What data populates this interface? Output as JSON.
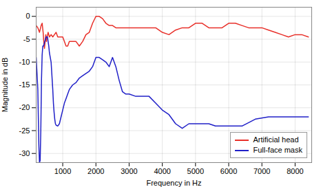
{
  "chart_data": {
    "type": "line",
    "title": "",
    "xlabel": "Frequency in Hz",
    "ylabel": "Magnitude in dB",
    "xlim": [
      200,
      8500
    ],
    "ylim": [
      -32,
      2
    ],
    "xticks": [
      1000,
      2000,
      3000,
      4000,
      5000,
      6000,
      7000,
      8000
    ],
    "yticks": [
      0,
      -5,
      -10,
      -15,
      -20,
      -25,
      -30
    ],
    "grid": true,
    "legend": "lower right",
    "series": [
      {
        "name": "Artificial head",
        "color": "#e8302a",
        "x": [
          200,
          250,
          300,
          350,
          380,
          410,
          430,
          450,
          470,
          490,
          510,
          530,
          560,
          600,
          650,
          700,
          750,
          800,
          850,
          900,
          950,
          1000,
          1050,
          1100,
          1150,
          1200,
          1300,
          1400,
          1500,
          1600,
          1700,
          1800,
          1900,
          2000,
          2100,
          2200,
          2300,
          2400,
          2500,
          2600,
          2700,
          2800,
          2900,
          3000,
          3200,
          3400,
          3600,
          3800,
          4000,
          4200,
          4400,
          4600,
          4800,
          5000,
          5200,
          5400,
          5600,
          5800,
          6000,
          6200,
          6400,
          6600,
          6800,
          7000,
          7200,
          7400,
          7600,
          7800,
          8000,
          8200,
          8400
        ],
        "values": [
          -2.0,
          -2.5,
          -3.5,
          -2.0,
          -1.5,
          -3.5,
          -5.5,
          -7.0,
          -5.5,
          -4.0,
          -5.5,
          -4.5,
          -3.5,
          -4.5,
          -4.0,
          -4.5,
          -4.0,
          -3.5,
          -4.5,
          -4.5,
          -4.5,
          -4.5,
          -5.5,
          -6.5,
          -6.5,
          -5.5,
          -5.5,
          -5.5,
          -6.5,
          -5.5,
          -4.0,
          -3.5,
          -1.5,
          0.0,
          0.0,
          -0.5,
          -1.5,
          -2.0,
          -2.0,
          -2.5,
          -2.5,
          -2.5,
          -2.5,
          -2.5,
          -2.5,
          -2.5,
          -2.5,
          -2.5,
          -3.5,
          -4.0,
          -3.0,
          -2.5,
          -2.5,
          -1.5,
          -1.5,
          -2.5,
          -2.5,
          -2.5,
          -1.5,
          -1.5,
          -2.0,
          -2.5,
          -2.5,
          -2.5,
          -3.0,
          -3.5,
          -4.0,
          -4.5,
          -4.0,
          -4.0,
          -4.5
        ]
      },
      {
        "name": "Full-face mask",
        "color": "#2020c8",
        "x": [
          200,
          250,
          280,
          300,
          320,
          340,
          360,
          380,
          400,
          420,
          440,
          460,
          480,
          500,
          520,
          540,
          560,
          580,
          600,
          650,
          700,
          720,
          740,
          760,
          780,
          800,
          850,
          900,
          950,
          1000,
          1050,
          1100,
          1150,
          1200,
          1300,
          1400,
          1500,
          1600,
          1700,
          1800,
          1900,
          2000,
          2100,
          2200,
          2300,
          2400,
          2500,
          2600,
          2700,
          2800,
          2900,
          3000,
          3200,
          3400,
          3600,
          3800,
          4000,
          4200,
          4400,
          4600,
          4800,
          5000,
          5200,
          5400,
          5600,
          5800,
          6000,
          6200,
          6400,
          6800,
          7200,
          8000,
          8400
        ],
        "values": [
          -9.0,
          -16.0,
          -28.0,
          -32.0,
          -31.5,
          -25.0,
          -14.0,
          -8.5,
          -6.5,
          -6.5,
          -6.0,
          -5.5,
          -5.0,
          -4.5,
          -4.5,
          -4.5,
          -5.5,
          -6.5,
          -8.0,
          -10.0,
          -16.0,
          -19.0,
          -21.0,
          -22.5,
          -23.5,
          -23.8,
          -24.0,
          -23.5,
          -22.0,
          -20.5,
          -19.0,
          -18.0,
          -17.0,
          -16.0,
          -15.0,
          -14.5,
          -13.5,
          -13.0,
          -12.5,
          -12.0,
          -11.0,
          -9.0,
          -9.0,
          -9.5,
          -10.0,
          -11.0,
          -9.0,
          -11.0,
          -14.0,
          -16.5,
          -17.0,
          -17.0,
          -17.5,
          -17.5,
          -17.5,
          -19.0,
          -20.5,
          -21.5,
          -23.5,
          -24.5,
          -23.5,
          -23.5,
          -23.5,
          -23.5,
          -24.0,
          -24.0,
          -24.0,
          -24.0,
          -24.0,
          -22.5,
          -22.0,
          -22.0,
          -22.0
        ]
      }
    ]
  }
}
